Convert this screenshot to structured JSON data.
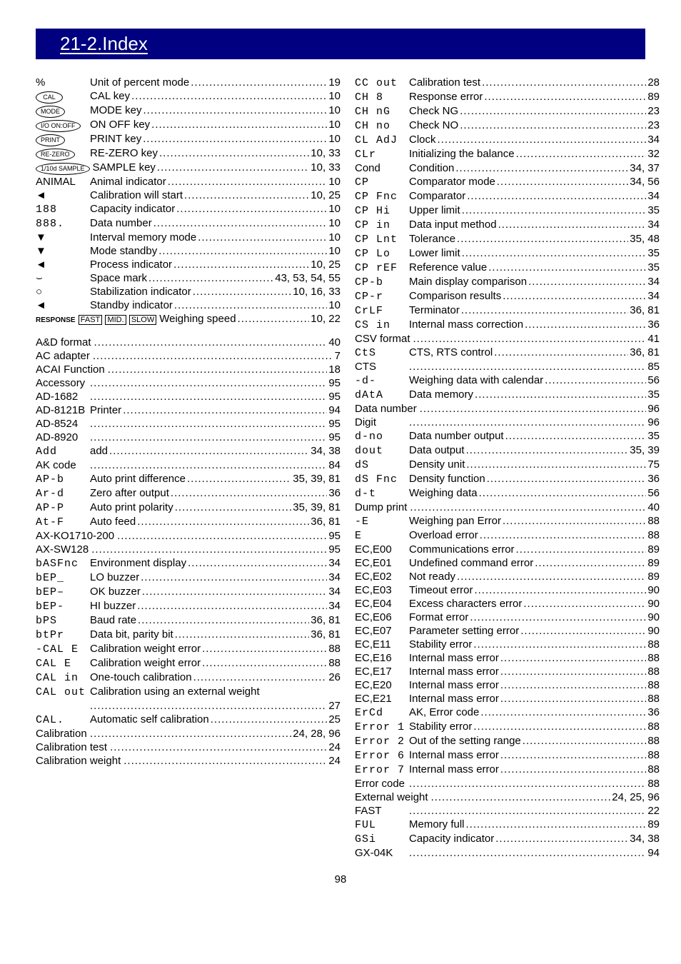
{
  "title": "21-2.Index",
  "page_number": "98",
  "left_group_1": [
    {
      "key": "%",
      "label": "Unit of percent mode",
      "page": "19"
    },
    {
      "key_type": "oval",
      "key": "CAL",
      "label": "CAL key",
      "page": "10"
    },
    {
      "key_type": "oval",
      "key": "MODE",
      "label": "MODE key",
      "page": "10"
    },
    {
      "key_type": "oval",
      "key": "I/O ON:OFF",
      "label": "ON OFF key",
      "page": "10"
    },
    {
      "key_type": "oval",
      "key": "PRINT",
      "label": "PRINT key",
      "page": "10"
    },
    {
      "key_type": "oval",
      "key": "RE-ZERO",
      "label": "RE-ZERO key",
      "page": "10, 33"
    },
    {
      "key_type": "oval",
      "key": "1/10d SAMPLE",
      "label": "SAMPLE key",
      "page": "10, 33"
    },
    {
      "key": "ANIMAL",
      "label": "Animal indicator",
      "page": "10"
    },
    {
      "key": "◄",
      "label": "Calibration will start",
      "page": "10, 25"
    },
    {
      "key_type": "seg",
      "key": "188",
      "label": "Capacity indicator",
      "page": "10"
    },
    {
      "key_type": "seg",
      "key": "888.",
      "label": "Data number",
      "page": "10"
    },
    {
      "key": "▼",
      "label": "Interval memory mode",
      "page": "10"
    },
    {
      "key": "▼",
      "label": "Mode standby",
      "page": "10"
    },
    {
      "key": "◄",
      "label": "Process indicator",
      "page": "10, 25"
    },
    {
      "key": "⌣",
      "label": "Space mark",
      "page": "43, 53, 54, 55"
    },
    {
      "key": "○",
      "label": "Stabilization indicator",
      "page": "10, 16, 33"
    },
    {
      "key": "◄",
      "label": "Standby indicator",
      "page": "10"
    },
    {
      "key_type": "response",
      "label": "Weighing speed",
      "page": "10, 22"
    }
  ],
  "left_group_2": [
    {
      "key": "A&D format",
      "label": "",
      "page": "40"
    },
    {
      "key": "AC adapter",
      "label": "",
      "page": "7"
    },
    {
      "key": "ACAI Function",
      "label": "",
      "page": "18"
    },
    {
      "key": "Accessory",
      "label": "",
      "page": "95"
    },
    {
      "key": "AD-1682",
      "label": "",
      "page": "95"
    },
    {
      "key": "AD-8121B",
      "label": "Printer",
      "page": "94"
    },
    {
      "key": "AD-8524",
      "label": "",
      "page": "95"
    },
    {
      "key": "AD-8920",
      "label": "",
      "page": "95"
    },
    {
      "key_type": "seg",
      "key": "Add",
      "label": "add",
      "page": "34, 38"
    },
    {
      "key": "AK code",
      "label": "",
      "page": "84"
    },
    {
      "key_type": "seg",
      "key": "AP-b",
      "label": "Auto print difference",
      "page": "35, 39, 81"
    },
    {
      "key_type": "seg",
      "key": "Ar-d",
      "label": "Zero after output",
      "page": "36"
    },
    {
      "key_type": "seg",
      "key": "AP-P",
      "label": "Auto print polarity",
      "page": "35, 39, 81"
    },
    {
      "key_type": "seg",
      "key": "At-F",
      "label": "Auto feed",
      "page": "36, 81"
    },
    {
      "key": "AX-KO1710-200",
      "label": "",
      "page": "95"
    },
    {
      "key": "AX-SW128",
      "label": "",
      "page": "95"
    },
    {
      "key_type": "seg",
      "key": "bASFnc",
      "label": "Environment display",
      "page": "34"
    },
    {
      "key_type": "seg",
      "key": "bEP_",
      "label": "LO buzzer",
      "page": "34"
    },
    {
      "key_type": "seg",
      "key": "bEP–",
      "label": "OK buzzer",
      "page": "34"
    },
    {
      "key_type": "seg",
      "key": "bEP-",
      "label": "HI buzzer",
      "page": "34"
    },
    {
      "key_type": "seg",
      "key": "bPS",
      "label": "Baud rate",
      "page": "36, 81"
    },
    {
      "key_type": "seg",
      "key": "btPr",
      "label": "Data bit, parity bit",
      "page": "36, 81"
    },
    {
      "key_type": "seg",
      "key": "-CAL E",
      "label": "Calibration weight error",
      "page": "88"
    },
    {
      "key_type": "seg",
      "key": "CAL E",
      "label": "Calibration weight error",
      "page": "88"
    },
    {
      "key_type": "seg",
      "key": "CAL in",
      "label": "One-touch calibration",
      "page": "26"
    },
    {
      "key_type": "seg",
      "key": "CAL out",
      "label": "Calibration using an external weight",
      "page": ""
    },
    {
      "key": "",
      "label": "",
      "page": "27"
    },
    {
      "key_type": "seg",
      "key": "CAL.",
      "label": "Automatic self calibration",
      "page": "25"
    },
    {
      "key": "Calibration",
      "label": "",
      "page": "24, 28, 96"
    },
    {
      "key": "Calibration test",
      "label": "",
      "page": "24"
    },
    {
      "key": "Calibration weight",
      "label": "",
      "page": "24"
    }
  ],
  "right": [
    {
      "key_type": "seg",
      "key": "CC out",
      "label": "Calibration test",
      "page": "28"
    },
    {
      "key_type": "seg",
      "key": "CH 8",
      "label": "Response error",
      "page": "89"
    },
    {
      "key_type": "seg",
      "key": "CH nG",
      "label": "Check NG",
      "page": "23"
    },
    {
      "key_type": "seg",
      "key": "CH no",
      "label": "Check NO",
      "page": "23"
    },
    {
      "key_type": "seg",
      "key": "CL AdJ",
      "label": "Clock",
      "page": "34"
    },
    {
      "key_type": "seg",
      "key": "CLr",
      "label": "Initializing the balance",
      "page": "32"
    },
    {
      "key": "Cond",
      "label": "Condition",
      "page": "34, 37"
    },
    {
      "key_type": "seg",
      "key": "CP",
      "label": "Comparator mode",
      "page": "34, 56"
    },
    {
      "key_type": "seg",
      "key": "CP Fnc",
      "label": "Comparator",
      "page": "34"
    },
    {
      "key_type": "seg",
      "key": "CP Hi",
      "label": "Upper limit",
      "page": "35"
    },
    {
      "key_type": "seg",
      "key": "CP in",
      "label": "Data input method",
      "page": "34"
    },
    {
      "key_type": "seg",
      "key": "CP Lnt",
      "label": "Tolerance",
      "page": "35, 48"
    },
    {
      "key_type": "seg",
      "key": "CP Lo",
      "label": "Lower limit",
      "page": "35"
    },
    {
      "key_type": "seg",
      "key": "CP rEF",
      "label": "Reference value",
      "page": "35"
    },
    {
      "key_type": "seg",
      "key": "CP-b",
      "label": "Main display comparison",
      "page": "34"
    },
    {
      "key_type": "seg",
      "key": "CP-r",
      "label": "Comparison results",
      "page": "34"
    },
    {
      "key_type": "seg",
      "key": "CrLF",
      "label": "Terminator",
      "page": "36, 81"
    },
    {
      "key_type": "seg",
      "key": "CS in",
      "label": "Internal mass correction",
      "page": "36"
    },
    {
      "key": "CSV format",
      "label": "",
      "page": "41"
    },
    {
      "key_type": "seg",
      "key": "CtS",
      "label": "CTS, RTS control",
      "page": "36, 81"
    },
    {
      "key": "CTS",
      "label": "",
      "page": "85"
    },
    {
      "key_type": "seg",
      "key": "-d-",
      "label": "Weighing data with calendar",
      "page": "56"
    },
    {
      "key_type": "seg",
      "key": "dAtA",
      "label": "Data memory",
      "page": "35"
    },
    {
      "key": "Data number",
      "label": "",
      "page": "96"
    },
    {
      "key": "Digit",
      "label": "",
      "page": "96"
    },
    {
      "key_type": "seg",
      "key": "d-no",
      "label": "Data number output",
      "page": "35"
    },
    {
      "key_type": "seg",
      "key": "dout",
      "label": "Data output",
      "page": "35, 39"
    },
    {
      "key_type": "seg",
      "key": "dS",
      "label": "Density unit",
      "page": "75"
    },
    {
      "key_type": "seg",
      "key": "dS Fnc",
      "label": "Density function",
      "page": "36"
    },
    {
      "key_type": "seg",
      "key": "d-t",
      "label": "Weighing data",
      "page": "56"
    },
    {
      "key": "Dump print",
      "label": "",
      "page": "40"
    },
    {
      "key_type": "seg",
      "key": "-E",
      "label": "Weighing pan Error",
      "page": "88"
    },
    {
      "key_type": "seg",
      "key": "E",
      "label": "Overload error",
      "page": "88"
    },
    {
      "key": "EC,E00",
      "label": "Communications error",
      "page": "89"
    },
    {
      "key": "EC,E01",
      "label": "Undefined command error",
      "page": "89"
    },
    {
      "key": "EC,E02",
      "label": "Not ready",
      "page": "89"
    },
    {
      "key": "EC,E03",
      "label": "Timeout error",
      "page": "90"
    },
    {
      "key": "EC,E04",
      "label": "Excess characters error",
      "page": "90"
    },
    {
      "key": "EC,E06",
      "label": "Format error",
      "page": "90"
    },
    {
      "key": "EC,E07",
      "label": "Parameter setting error",
      "page": "90"
    },
    {
      "key": "EC,E11",
      "label": "Stability error",
      "page": "88"
    },
    {
      "key": "EC,E16",
      "label": "Internal mass error",
      "page": "88"
    },
    {
      "key": "EC,E17",
      "label": "Internal mass error",
      "page": "88"
    },
    {
      "key": "EC,E20",
      "label": "Internal mass error",
      "page": "88"
    },
    {
      "key": "EC,E21",
      "label": "Internal mass error",
      "page": "88"
    },
    {
      "key_type": "seg",
      "key": "ErCd",
      "label": "AK, Error code",
      "page": "36"
    },
    {
      "key_type": "seg",
      "key": "Error 1",
      "label": "Stability error",
      "page": "88"
    },
    {
      "key_type": "seg",
      "key": "Error 2",
      "label": "Out of the setting range",
      "page": "88"
    },
    {
      "key_type": "seg",
      "key": "Error 6",
      "label": "Internal mass error",
      "page": "88"
    },
    {
      "key_type": "seg",
      "key": "Error 7",
      "label": "Internal mass error",
      "page": "88"
    },
    {
      "key": "Error code",
      "label": "",
      "page": "88"
    },
    {
      "key": "External weight",
      "label": "",
      "page": "24, 25, 96"
    },
    {
      "key": "FAST",
      "label": "",
      "page": "22"
    },
    {
      "key_type": "seg",
      "key": "FUL",
      "label": "Memory full",
      "page": "89"
    },
    {
      "key_type": "seg",
      "key": "GSi",
      "label": "Capacity indicator",
      "page": "34, 38"
    },
    {
      "key": "GX-04K",
      "label": "",
      "page": "94"
    }
  ]
}
